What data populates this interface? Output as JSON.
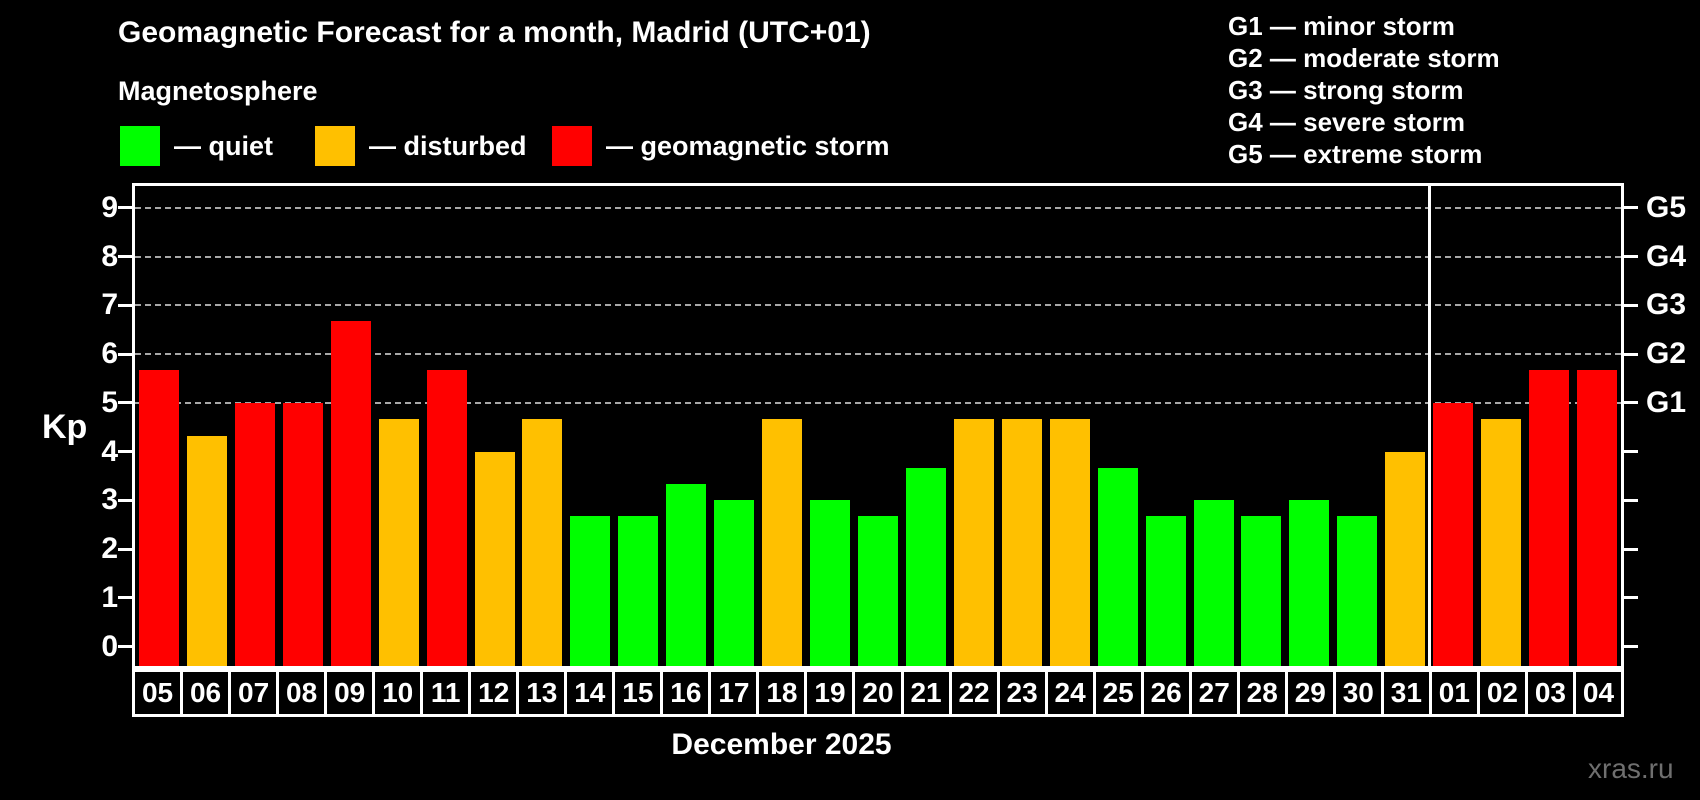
{
  "header": {
    "title": "Geomagnetic Forecast for a month, Madrid (UTC+01)",
    "subtitle": "Magnetosphere"
  },
  "legend": {
    "items": [
      {
        "key": "quiet",
        "label": "— quiet",
        "color": "#00ff00"
      },
      {
        "key": "disturbed",
        "label": "— disturbed",
        "color": "#ffc000"
      },
      {
        "key": "storm",
        "label": "— geomagnetic storm",
        "color": "#ff0000"
      }
    ]
  },
  "g_legend": [
    "G1 — minor storm",
    "G2 — moderate storm",
    "G3 — strong storm",
    "G4 — severe storm",
    "G5 — extreme storm"
  ],
  "watermark": "xras.ru",
  "chart_data": {
    "type": "bar",
    "title": "Geomagnetic Forecast for a month, Madrid (UTC+01)",
    "subtitle": "Magnetosphere",
    "xlabel": "December 2025",
    "ylabel": "Kp",
    "ylim": [
      0,
      9.45
    ],
    "yticks": [
      0,
      1,
      2,
      3,
      4,
      5,
      6,
      7,
      8,
      9
    ],
    "gridlines_at": [
      5,
      6,
      7,
      8,
      9
    ],
    "grid_style": "dashed",
    "legend_position": "top-left",
    "right_axis_labels": [
      {
        "code": "G1",
        "kp": 5
      },
      {
        "code": "G2",
        "kp": 6
      },
      {
        "code": "G3",
        "kp": 7
      },
      {
        "code": "G4",
        "kp": 8
      },
      {
        "code": "G5",
        "kp": 9
      }
    ],
    "colors": {
      "quiet": "#00ff00",
      "disturbed": "#ffc000",
      "storm": "#ff0000"
    },
    "categories": [
      "05",
      "06",
      "07",
      "08",
      "09",
      "10",
      "11",
      "12",
      "13",
      "14",
      "15",
      "16",
      "17",
      "18",
      "19",
      "20",
      "21",
      "22",
      "23",
      "24",
      "25",
      "26",
      "27",
      "28",
      "29",
      "30",
      "31",
      "01",
      "02",
      "03",
      "04"
    ],
    "values": [
      5.67,
      4.33,
      5,
      5,
      6.67,
      4.67,
      5.67,
      4,
      4.67,
      2.67,
      2.67,
      3.33,
      3,
      4.67,
      3,
      2.67,
      3.67,
      4.67,
      4.67,
      4.67,
      3.67,
      2.67,
      3,
      2.67,
      3,
      2.67,
      4,
      5,
      4.67,
      5.67,
      5.67
    ],
    "statuses": [
      "storm",
      "disturbed",
      "storm",
      "storm",
      "storm",
      "disturbed",
      "storm",
      "disturbed",
      "disturbed",
      "quiet",
      "quiet",
      "quiet",
      "quiet",
      "disturbed",
      "quiet",
      "quiet",
      "quiet",
      "disturbed",
      "disturbed",
      "disturbed",
      "quiet",
      "quiet",
      "quiet",
      "quiet",
      "quiet",
      "quiet",
      "disturbed",
      "storm",
      "disturbed",
      "storm",
      "storm"
    ],
    "month_boundary_after": 27
  }
}
